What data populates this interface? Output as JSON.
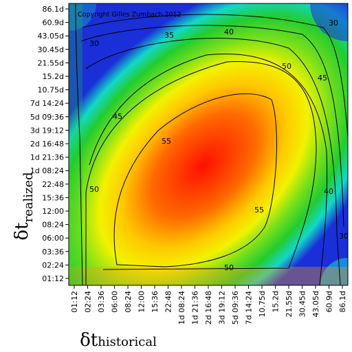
{
  "chart_data": {
    "type": "heatmap",
    "copyright": "Copyright Gilles Zumbach 2012",
    "xlabel": {
      "symbol": "δt",
      "subscript": "historical"
    },
    "ylabel": {
      "symbol": "δt",
      "subscript": "realized"
    },
    "x_ticks": [
      "01:12",
      "02:24",
      "03:36",
      "06:00",
      "08:24",
      "12:00",
      "15:36",
      "22:48",
      "1d 08:24",
      "1d 21:36",
      "2d 16:48",
      "3d 19:12",
      "5d 09:36",
      "7d 14:24",
      "10.75d",
      "15.2d",
      "21.55d",
      "30.45d",
      "43.05d",
      "60.9d",
      "86.1d"
    ],
    "y_ticks": [
      "01:12",
      "02:24",
      "03:36",
      "06:00",
      "08:24",
      "12:00",
      "15:36",
      "22:48",
      "1d 08:24",
      "1d 21:36",
      "2d 16:48",
      "3d 19:12",
      "5d 09:36",
      "7d 14:24",
      "10.75d",
      "15.2d",
      "21.55d",
      "30.45d",
      "43.05d",
      "60.9d",
      "86.1d"
    ],
    "contour_levels": [
      30,
      35,
      40,
      45,
      50,
      55
    ],
    "contour_labels": [
      {
        "text": "30",
        "value": 30
      },
      {
        "text": "30",
        "value": 30
      },
      {
        "text": "30",
        "value": 30
      },
      {
        "text": "35",
        "value": 35
      },
      {
        "text": "40",
        "value": 40
      },
      {
        "text": "40",
        "value": 40
      },
      {
        "text": "45",
        "value": 45
      },
      {
        "text": "45",
        "value": 45
      },
      {
        "text": "50",
        "value": 50
      },
      {
        "text": "50",
        "value": 50
      },
      {
        "text": "50",
        "value": 50
      },
      {
        "text": "55",
        "value": 55
      },
      {
        "text": "55",
        "value": 55
      }
    ],
    "colors": {
      "low": "#1a2fd8",
      "mid_low": "#10e0e8",
      "mid": "#22cc22",
      "mid_high": "#f0f000",
      "high": "#ff1000"
    }
  }
}
